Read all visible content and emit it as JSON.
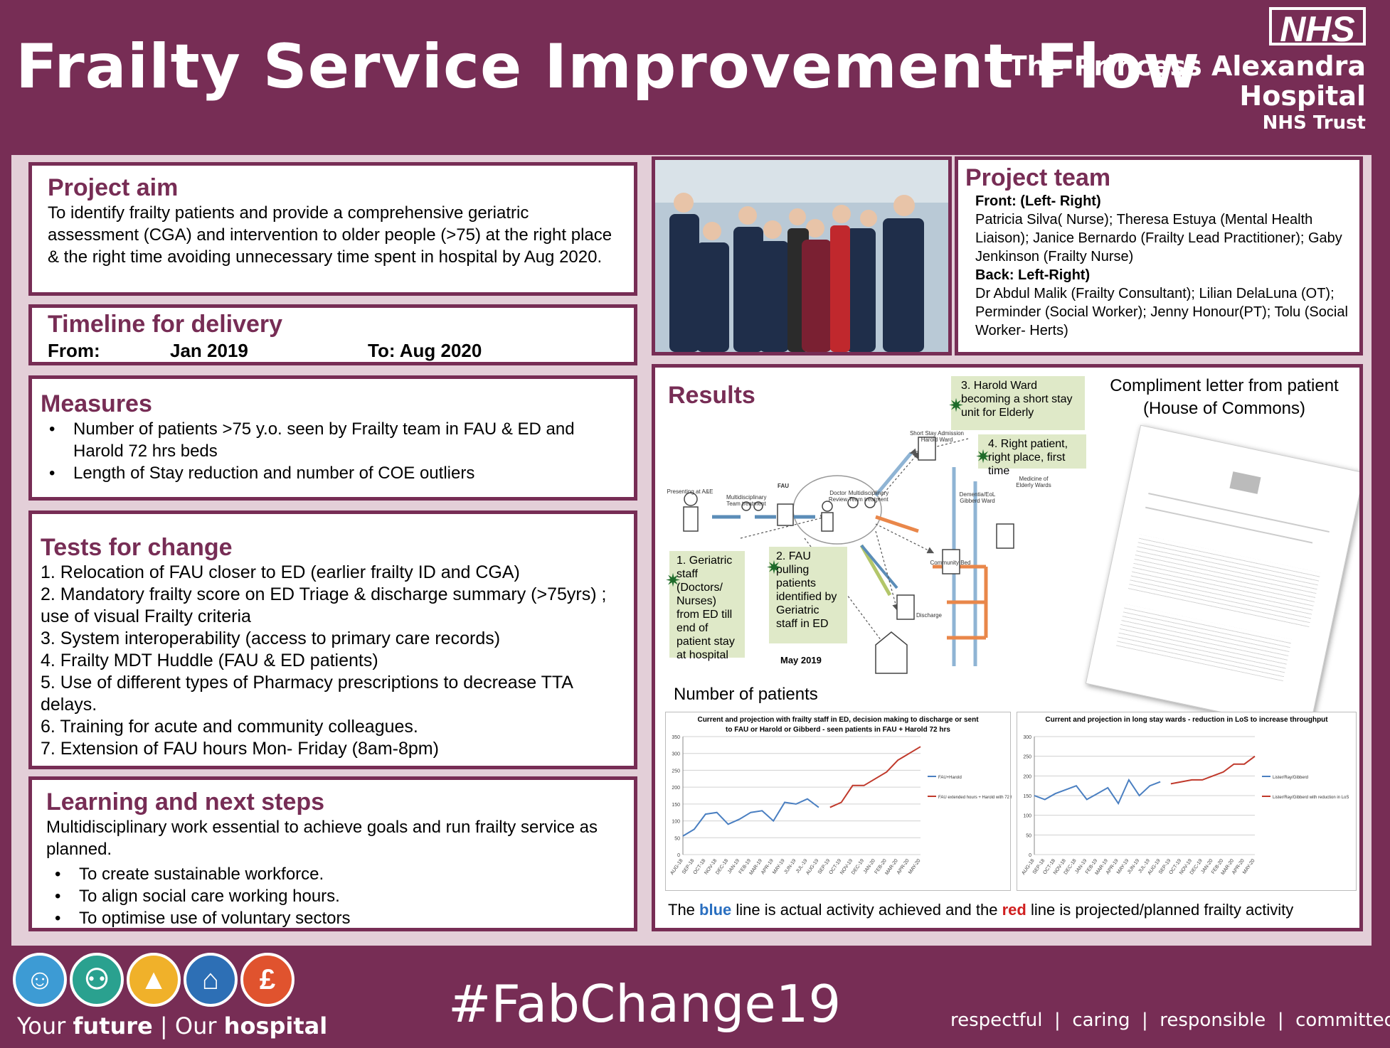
{
  "header": {
    "title": "Frailty Service Improvement Flow",
    "nhs_logo": "NHS",
    "org_line1": "The Princess Alexandra",
    "org_line2": "Hospital",
    "org_line3": "NHS Trust"
  },
  "project_aim": {
    "heading": "Project aim",
    "text": "To  identify frailty patients  and provide a comprehensive geriatric assessment  (CGA) and intervention to older people (>75)  at the right place & the right time avoiding unnecessary time spent in hospital by Aug 2020."
  },
  "timeline": {
    "heading": "Timeline for delivery",
    "from_label": "From:",
    "from_value": "Jan 2019",
    "to_label": "To: Aug 2020"
  },
  "measures": {
    "heading": "Measures",
    "items": [
      "Number of patients >75 y.o. seen by Frailty team in FAU & ED and Harold 72 hrs beds",
      "Length of Stay reduction and number of COE outliers"
    ]
  },
  "tests": {
    "heading": "Tests for change",
    "items": [
      "1. Relocation of FAU closer to ED (earlier frailty ID and CGA)",
      "2. Mandatory frailty score on  ED Triage & discharge summary (>75yrs) ; use of visual Frailty criteria",
      "3. System interoperability (access to primary care records)",
      "4. Frailty MDT Huddle (FAU & ED patients)",
      "5. Use of different  types of Pharmacy prescriptions  to decrease TTA delays.",
      "6. Training  for acute and community colleagues.",
      "7. Extension of FAU hours Mon- Friday (8am-8pm)"
    ]
  },
  "learning": {
    "heading": "Learning and next steps",
    "text": "Multidisciplinary work essential to achieve goals and run frailty service as planned.",
    "items": [
      "To create sustainable workforce.",
      "To align social care working hours.",
      "To optimise use of voluntary sectors"
    ]
  },
  "team": {
    "heading": "Project team",
    "front_label": "Front: (Left- Right)",
    "front_names": "Patricia Silva( Nurse); Theresa Estuya (Mental Health Liaison); Janice Bernardo (Frailty Lead Practitioner); Gaby Jenkinson (Frailty Nurse)",
    "back_label": "Back: Left-Right)",
    "back_names": "Dr Abdul Malik (Frailty Consultant); Lilian DelaLuna (OT); Perminder (Social Worker); Jenny Honour(PT); Tolu (Social Worker- Herts)"
  },
  "results": {
    "heading": "Results",
    "note1": "1.  Geriatric staff (Doctors/ Nurses) from ED till end of patient stay at hospital",
    "note2": "2. FAU pulling patients identified by Geriatric staff in ED",
    "note3": "3. Harold Ward becoming a short stay unit for Elderly",
    "note4": "4. Right patient, right place, first time",
    "diagram_date": "May 2019",
    "diagram_labels": {
      "presenting": "Presenting at A&E",
      "mdt1": "Multidisciplinary Team treatment",
      "fau": "FAU",
      "doctor": "Doctor Review",
      "mdt2": "Multidisciplinary Team treatment",
      "short_stay": "Short Stay Admission Harold Ward",
      "dementia": "Dementia/EoL Gibberd Ward",
      "medicine": "Medicine of Elderly Wards",
      "community": "Community Bed",
      "discharge": "Discharge"
    },
    "compliment_title_1": "Compliment letter from patient",
    "compliment_title_2": "(House of Commons)",
    "patients_label": "Number of patients",
    "caption_pre": "The ",
    "caption_blue": "blue",
    "caption_mid": " line is actual activity achieved and the ",
    "caption_red": "red",
    "caption_post": " line is projected/planned frailty activity"
  },
  "chart_data": [
    {
      "type": "line",
      "title": "Current and projection with frailty staff in ED, decision making to discharge or sent to FAU or Harold or Gibberd - seen patients in FAU + Harold 72 hrs",
      "x": [
        "AUG-18",
        "SEP-18",
        "OCT-18",
        "NOV-18",
        "DEC-18",
        "JAN-19",
        "FEB-19",
        "MAR-19",
        "APR-19",
        "MAY-19",
        "JUN-19",
        "JUL-19",
        "AUG-19",
        "SEP-19",
        "OCT-19",
        "NOV-19",
        "DEC-19",
        "JAN-20",
        "FEB-20",
        "MAR-20",
        "APR-20",
        "MAY-20"
      ],
      "ylim": [
        0,
        350
      ],
      "yticks": [
        0,
        50,
        100,
        150,
        200,
        250,
        300,
        350
      ],
      "series": [
        {
          "name": "FAU+Harold",
          "color": "#4a7fc1",
          "values": [
            55,
            75,
            120,
            125,
            90,
            105,
            125,
            130,
            100,
            155,
            150,
            165,
            140,
            null,
            null,
            null,
            null,
            null,
            null,
            null,
            null,
            null
          ]
        },
        {
          "name": "FAU extended hours + Harold with 72 hrs beds",
          "color": "#c0392b",
          "values": [
            null,
            null,
            null,
            null,
            null,
            null,
            null,
            null,
            null,
            null,
            null,
            null,
            null,
            140,
            155,
            205,
            205,
            225,
            245,
            280,
            300,
            320
          ]
        }
      ]
    },
    {
      "type": "line",
      "title": "Current and projection in long stay wards - reduction in LoS to increase throughput",
      "x": [
        "AUG-18",
        "SEP-18",
        "OCT-18",
        "NOV-18",
        "DEC-18",
        "JAN-19",
        "FEB-19",
        "MAR-19",
        "APR-19",
        "MAY-19",
        "JUN-19",
        "JUL-19",
        "AUG-19",
        "SEP-19",
        "OCT-19",
        "NOV-19",
        "DEC-19",
        "JAN-20",
        "FEB-20",
        "MAR-20",
        "APR-20",
        "MAY-20"
      ],
      "ylim": [
        0,
        300
      ],
      "yticks": [
        0,
        50,
        100,
        150,
        200,
        250,
        300
      ],
      "series": [
        {
          "name": "Lister/Ray/Gibberd",
          "color": "#4a7fc1",
          "values": [
            150,
            140,
            155,
            165,
            175,
            140,
            155,
            170,
            130,
            190,
            150,
            175,
            185,
            null,
            null,
            null,
            null,
            null,
            null,
            null,
            null,
            null
          ]
        },
        {
          "name": "Lister/Ray/Gibberd with reduction in LoS",
          "color": "#c0392b",
          "values": [
            null,
            null,
            null,
            null,
            null,
            null,
            null,
            null,
            null,
            null,
            null,
            null,
            null,
            180,
            185,
            190,
            190,
            200,
            210,
            230,
            230,
            250
          ]
        }
      ]
    }
  ],
  "footer": {
    "hashtag": "#FabChange19",
    "your": "Your ",
    "future": "future",
    "sep": " | Our ",
    "hospital": "hospital",
    "values": "respectful  |  caring  |  responsible  |  committed",
    "icons": [
      {
        "name": "person-icon",
        "color": "#3d9bd4"
      },
      {
        "name": "people-icon",
        "color": "#2aa18f"
      },
      {
        "name": "growth-icon",
        "color": "#f0b12a"
      },
      {
        "name": "home-icon",
        "color": "#2d6fb5"
      },
      {
        "name": "pound-icon",
        "color": "#e0532e"
      }
    ]
  }
}
